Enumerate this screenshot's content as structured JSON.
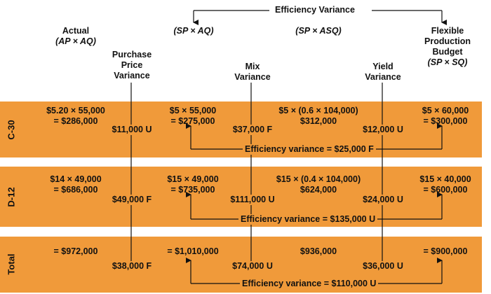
{
  "colors": {
    "band": "#f09a3a",
    "text": "#111111"
  },
  "top_label": "Efficiency Variance",
  "headers": {
    "actual": [
      "Actual",
      "(AP × AQ)"
    ],
    "sp_aq": "(SP × AQ)",
    "sp_asq": "(SP × ASQ)",
    "flexible": [
      "Flexible",
      "Production",
      "Budget",
      "(SP × SQ)"
    ],
    "price_variance": [
      "Purchase",
      "Price",
      "Variance"
    ],
    "mix_variance": [
      "Mix",
      "Variance"
    ],
    "yield_variance": [
      "Yield",
      "Variance"
    ]
  },
  "rows": [
    {
      "label": "C-30",
      "actual": [
        "$5.20 × 55,000",
        "= $286,000"
      ],
      "sp_aq": [
        "$5 × 55,000",
        "= $275,000"
      ],
      "sp_asq": [
        "$5 × (0.6 × 104,000)",
        "$312,000"
      ],
      "flexible": [
        "$5 × 60,000",
        "= $300,000"
      ],
      "price_var": "$11,000 U",
      "mix_var": "$37,000 F",
      "yield_var": "$12,000 U",
      "efficiency": "Efficiency variance = $25,000 F"
    },
    {
      "label": "D-12",
      "actual": [
        "$14 × 49,000",
        "= $686,000"
      ],
      "sp_aq": [
        "$15 × 49,000",
        "= $735,000"
      ],
      "sp_asq": [
        "$15 × (0.4 × 104,000)",
        "$624,000"
      ],
      "flexible": [
        "$15 × 40,000",
        "= $600,000"
      ],
      "price_var": "$49,000 F",
      "mix_var": "$111,000 U",
      "yield_var": "$24,000 U",
      "efficiency": "Efficiency variance = $135,000 U"
    },
    {
      "label": "Total",
      "actual": [
        "= $972,000"
      ],
      "sp_aq": [
        "= $1,010,000"
      ],
      "sp_asq": [
        "$936,000"
      ],
      "flexible": [
        "= $900,000"
      ],
      "price_var": "$38,000 F",
      "mix_var": "$74,000 U",
      "yield_var": "$36,000 U",
      "efficiency": "Efficiency variance = $110,000 U"
    }
  ]
}
